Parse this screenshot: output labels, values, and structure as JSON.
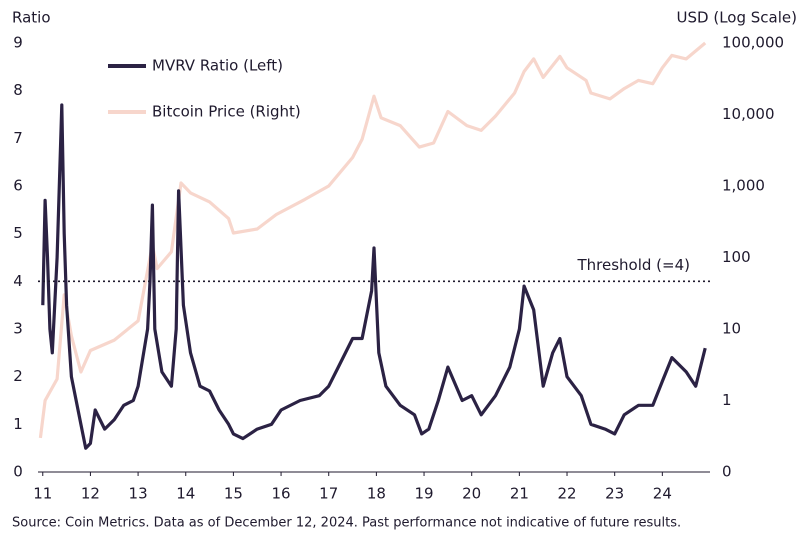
{
  "chart_data": {
    "type": "line",
    "y_label": "Ratio",
    "y2_label": "USD (Log Scale)",
    "footnote": "Source: Coin Metrics. Data as of December 12, 2024. Past performance not indicative of future results.",
    "xlim": [
      10.9,
      25
    ],
    "xticks": [
      11,
      12,
      13,
      14,
      15,
      16,
      17,
      18,
      19,
      20,
      21,
      22,
      23,
      24
    ],
    "ylim": [
      0,
      9
    ],
    "yticks": [
      0,
      1,
      2,
      3,
      4,
      5,
      6,
      7,
      8,
      9
    ],
    "y2lim": [
      0.1,
      100000
    ],
    "y2_log": true,
    "y2ticks": [
      {
        "value": 0.1,
        "label": "0"
      },
      1,
      10,
      100,
      {
        "value": 1000,
        "label": "1,000"
      },
      {
        "value": 10000,
        "label": "10,000"
      },
      {
        "value": 100000,
        "label": "100,000"
      }
    ],
    "legend": "top-left",
    "threshold": {
      "value": 4,
      "label": "Threshold (=4)"
    },
    "series": [
      {
        "name": "Bitcoin Price (Right)",
        "color": "#f7d6cc",
        "axis": "y2",
        "x": [
          10.95,
          11.05,
          11.3,
          11.45,
          11.6,
          11.8,
          12.0,
          12.5,
          13.0,
          13.3,
          13.4,
          13.7,
          13.9,
          14.1,
          14.5,
          14.9,
          15.0,
          15.5,
          15.9,
          16.5,
          17.0,
          17.5,
          17.7,
          17.95,
          18.1,
          18.5,
          18.9,
          19.2,
          19.5,
          19.9,
          20.2,
          20.5,
          20.9,
          21.1,
          21.3,
          21.5,
          21.85,
          22.0,
          22.4,
          22.5,
          22.9,
          23.2,
          23.5,
          23.8,
          24.0,
          24.2,
          24.5,
          24.9
        ],
        "values": [
          0.3,
          1,
          2,
          30,
          8,
          2.5,
          5,
          7,
          13,
          150,
          70,
          120,
          1100,
          800,
          600,
          350,
          220,
          250,
          400,
          650,
          1000,
          2500,
          4500,
          18000,
          9000,
          7000,
          3500,
          4000,
          11000,
          7000,
          6000,
          9500,
          20000,
          40000,
          60000,
          33000,
          65000,
          45000,
          30000,
          20000,
          16500,
          23000,
          30000,
          27000,
          45000,
          67000,
          60000,
          100000
        ]
      },
      {
        "name": "MVRV Ratio (Left)",
        "color": "#2b2244",
        "axis": "y",
        "x": [
          11.0,
          11.05,
          11.1,
          11.15,
          11.2,
          11.3,
          11.4,
          11.45,
          11.5,
          11.6,
          11.8,
          11.9,
          12.0,
          12.1,
          12.3,
          12.5,
          12.7,
          12.9,
          13.0,
          13.2,
          13.25,
          13.3,
          13.35,
          13.5,
          13.7,
          13.8,
          13.85,
          13.95,
          14.1,
          14.3,
          14.5,
          14.7,
          14.9,
          15.0,
          15.2,
          15.5,
          15.8,
          16.0,
          16.4,
          16.8,
          17.0,
          17.2,
          17.5,
          17.7,
          17.9,
          17.95,
          18.05,
          18.2,
          18.5,
          18.8,
          18.95,
          19.1,
          19.3,
          19.5,
          19.8,
          20.0,
          20.2,
          20.5,
          20.8,
          21.0,
          21.1,
          21.3,
          21.5,
          21.7,
          21.85,
          22.0,
          22.3,
          22.5,
          22.8,
          23.0,
          23.2,
          23.5,
          23.8,
          24.0,
          24.2,
          24.5,
          24.7,
          24.9
        ],
        "values": [
          3.5,
          5.7,
          4.5,
          3.0,
          2.5,
          4.5,
          7.7,
          5,
          3.5,
          2.0,
          1.0,
          0.5,
          0.6,
          1.3,
          0.9,
          1.1,
          1.4,
          1.5,
          1.8,
          3.0,
          4.0,
          5.6,
          3.0,
          2.1,
          1.8,
          3.0,
          5.9,
          3.5,
          2.5,
          1.8,
          1.7,
          1.3,
          1.0,
          0.8,
          0.7,
          0.9,
          1.0,
          1.3,
          1.5,
          1.6,
          1.8,
          2.2,
          2.8,
          2.8,
          3.8,
          4.7,
          2.5,
          1.8,
          1.4,
          1.2,
          0.8,
          0.9,
          1.5,
          2.2,
          1.5,
          1.6,
          1.2,
          1.6,
          2.2,
          3.0,
          3.9,
          3.4,
          1.8,
          2.5,
          2.8,
          2.0,
          1.6,
          1.0,
          0.9,
          0.8,
          1.2,
          1.4,
          1.4,
          1.9,
          2.4,
          2.1,
          1.8,
          2.6
        ]
      }
    ]
  }
}
